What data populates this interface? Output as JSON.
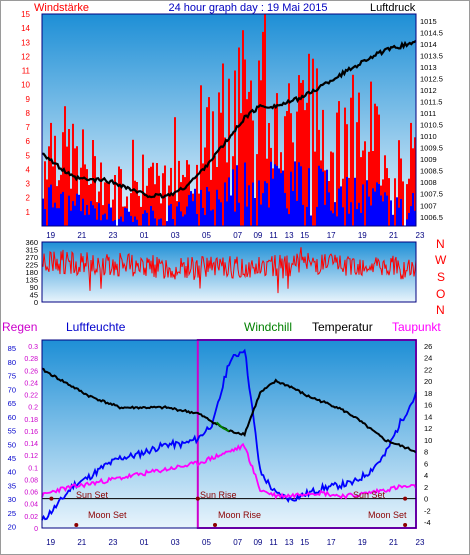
{
  "header": {
    "left_label": "Windstärke",
    "title": "24 hour graph day : 19 Mai 2015",
    "right_label": "Luftdruck"
  },
  "compass": {
    "letters": [
      "N",
      "W",
      "S",
      "O",
      "N"
    ]
  },
  "bottom_header": {
    "regen": "Regen",
    "luftfeuchte": "Luftfeuchte",
    "windchill": "Windchill",
    "temperatur": "Temperatur",
    "taupunkt": "Taupunkt"
  },
  "events": {
    "sun_set_1": "Sun Set",
    "sun_rise": "Sun Rise",
    "sun_set_2": "Sun Set",
    "moon_set_1": "Moon Set",
    "moon_rise": "Moon Rise",
    "moon_set_2": "Moon Set"
  },
  "colors": {
    "wind_gust": "#ff0000",
    "wind_avg": "#0000ff",
    "pressure": "#000000",
    "direction": "#ff0000",
    "humidity": "#0000ff",
    "temperature": "#000000",
    "dewpoint": "#ff00ff",
    "windchill": "#008000",
    "event_mark": "#8b0000",
    "sky_top": "#1e8fd6",
    "sky_bottom": "#e8f4fc"
  },
  "chart_data": [
    {
      "type": "bar",
      "name": "wind",
      "x_ticks": [
        "19",
        "21",
        "23",
        "01",
        "03",
        "05",
        "07",
        "09",
        "11",
        "13",
        "15",
        "17",
        "19",
        "21",
        "23"
      ],
      "ylim": [
        0,
        15
      ],
      "y_ticks": [
        1,
        2,
        3,
        4,
        5,
        6,
        7,
        8,
        9,
        10,
        11,
        12,
        13,
        14,
        15
      ],
      "gust_profile_hours": [
        0,
        2,
        4,
        6,
        8,
        9,
        10,
        12,
        13,
        14,
        16,
        18,
        20,
        22,
        24
      ],
      "gust_profile_values": [
        8,
        6,
        4,
        3,
        4,
        5,
        6,
        10,
        11,
        12,
        10,
        9,
        9,
        7,
        6
      ],
      "avg_profile_values": [
        3,
        2,
        1.5,
        1,
        1.5,
        2,
        2.5,
        4,
        4.5,
        5,
        4,
        3.5,
        3,
        2.5,
        2
      ]
    },
    {
      "type": "line",
      "name": "pressure",
      "y_ticks_right": [
        1006.5,
        1007,
        1007.5,
        1008,
        1008.5,
        1009,
        1009.5,
        1010,
        1010.5,
        1011,
        1011.5,
        1012,
        1012.5,
        1013,
        1013.5,
        1014,
        1014.5,
        1015
      ],
      "ylim": [
        1006.1,
        1015.3
      ],
      "hours": [
        0,
        1,
        2,
        3,
        4,
        5,
        6,
        7,
        8,
        9,
        10,
        11,
        12,
        13,
        14,
        15,
        16,
        17,
        18,
        19,
        20,
        21,
        22,
        23,
        24
      ],
      "values": [
        1009.3,
        1008.7,
        1008.2,
        1008.1,
        1008.1,
        1007.9,
        1007.6,
        1007.4,
        1007.4,
        1007.7,
        1008.3,
        1009.1,
        1009.9,
        1010.8,
        1011.3,
        1011.3,
        1011.5,
        1011.8,
        1012.2,
        1012.6,
        1013.0,
        1013.4,
        1013.7,
        1013.9,
        1014.1
      ]
    },
    {
      "type": "line",
      "name": "wind direction",
      "y_ticks": [
        0,
        45,
        90,
        135,
        180,
        225,
        270,
        315,
        360
      ],
      "ylim": [
        0,
        360
      ],
      "base_profile_hours": [
        0,
        3,
        6,
        9,
        12,
        15,
        18,
        21,
        24
      ],
      "base_profile_values": [
        240,
        230,
        220,
        200,
        210,
        220,
        230,
        220,
        200
      ]
    },
    {
      "type": "line",
      "name": "humidity / temperature / dewpoint",
      "y_ticks_regen": [
        0,
        0.02,
        0.04,
        0.06,
        0.08,
        0.1,
        0.12,
        0.14,
        0.16,
        0.18,
        0.2,
        0.22,
        0.24,
        0.26,
        0.28,
        0.3
      ],
      "y_ticks_humidity": [
        20,
        25,
        30,
        35,
        40,
        45,
        50,
        55,
        60,
        65,
        70,
        75,
        80,
        85
      ],
      "y_ticks_temperature": [
        -4,
        -2,
        0,
        2,
        4,
        6,
        8,
        10,
        12,
        14,
        16,
        18,
        20,
        22,
        24,
        26
      ],
      "temperature_lim": [
        -5,
        27
      ],
      "humidity_lim": [
        19.5,
        88
      ],
      "hours": [
        0,
        1,
        2,
        3,
        4,
        5,
        6,
        7,
        8,
        9,
        10,
        11,
        12,
        13,
        14,
        15,
        16,
        17,
        18,
        19,
        20,
        21,
        22,
        23,
        24
      ],
      "temperature": [
        22,
        20.5,
        19,
        17.5,
        16.5,
        15.5,
        15.5,
        15.5,
        15.5,
        15,
        14.5,
        13,
        11.5,
        11,
        18,
        20,
        19,
        17.5,
        16.5,
        15.5,
        14,
        12,
        10,
        9,
        8
      ],
      "humidity": [
        22,
        28,
        35,
        38,
        42,
        45,
        46,
        48,
        50,
        50,
        52,
        58,
        80,
        85,
        40,
        32,
        30,
        32,
        34,
        35,
        36,
        40,
        46,
        58,
        68
      ],
      "dewpoint": [
        0.5,
        1.5,
        2,
        2.5,
        3,
        3.5,
        4,
        4.5,
        5,
        5.5,
        6,
        7,
        8,
        9,
        1.5,
        0.5,
        0.5,
        1,
        1,
        0.5,
        0.5,
        1,
        1.5,
        2,
        2
      ],
      "windchill_hours": [
        11.2,
        11.6,
        12.0
      ],
      "windchill_values": [
        13,
        12,
        11.5
      ],
      "sun_set_hours": [
        0.6,
        23.3
      ],
      "sun_rise_hours": [
        10.0
      ],
      "moon_set_hours": [
        2.2,
        23.3
      ],
      "moon_rise_hours": [
        11.1
      ]
    }
  ]
}
